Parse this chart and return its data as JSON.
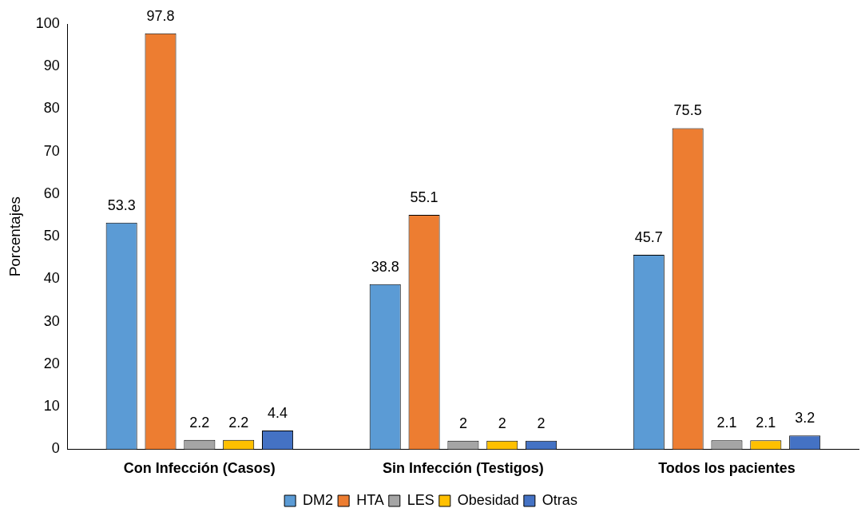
{
  "chart_data": {
    "type": "bar",
    "ylabel": "Porcentajes",
    "categories": [
      "Con Infección (Casos)",
      "Sin Infección (Testigos)",
      "Todos los pacientes"
    ],
    "series": [
      {
        "name": "DM2",
        "color": "#5b9bd5",
        "values": [
          53.3,
          38.8,
          45.7
        ]
      },
      {
        "name": "HTA",
        "color": "#ed7d31",
        "values": [
          97.8,
          55.1,
          75.5
        ]
      },
      {
        "name": "LES",
        "color": "#a5a5a5",
        "values": [
          2.2,
          2,
          2.1
        ]
      },
      {
        "name": "Obesidad",
        "color": "#ffc000",
        "values": [
          2.2,
          2,
          2.1
        ]
      },
      {
        "name": "Otras",
        "color": "#4472c4",
        "values": [
          4.4,
          2,
          3.2
        ]
      }
    ],
    "ylim": [
      0,
      100
    ],
    "yticks": [
      0,
      10,
      20,
      30,
      40,
      50,
      60,
      70,
      80,
      90,
      100
    ],
    "grid": false,
    "legend": "bottom",
    "data_labels": true
  }
}
